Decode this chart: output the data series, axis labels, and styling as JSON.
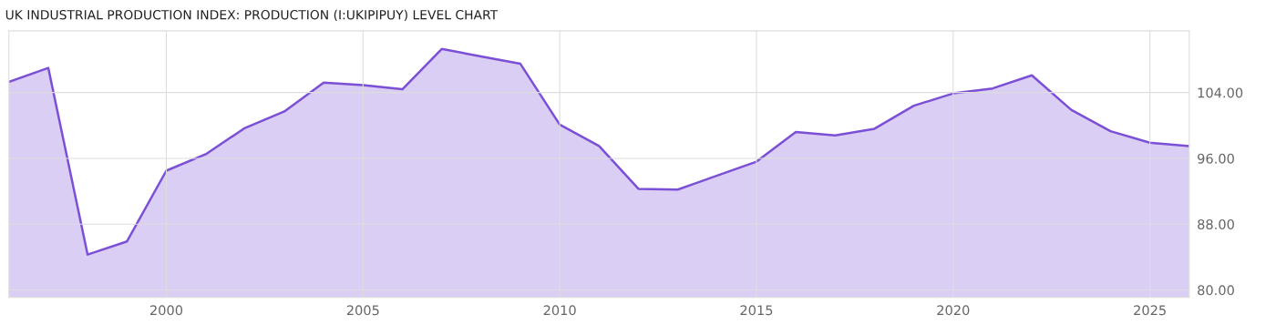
{
  "chart_data": {
    "type": "area",
    "title": "UK INDUSTRIAL PRODUCTION INDEX: PRODUCTION (I:UKIPIPUY) LEVEL CHART",
    "x": [
      1996,
      1997,
      1998,
      1999,
      2000,
      2001,
      2002,
      2003,
      2004,
      2005,
      2006,
      2007,
      2008,
      2009,
      2010,
      2011,
      2012,
      2013,
      2014,
      2015,
      2016,
      2017,
      2018,
      2019,
      2020,
      2021,
      2022,
      2023,
      2024,
      2025,
      2026
    ],
    "series": [
      {
        "color": "#7b4fd6",
        "values": [
          105.3,
          107.0,
          84.3,
          85.9,
          94.5,
          96.5,
          99.7,
          101.7,
          105.2,
          104.9,
          104.4,
          109.3,
          108.4,
          107.5,
          100.1,
          97.5,
          92.3,
          92.2,
          93.9,
          95.6,
          99.2,
          98.8,
          99.6,
          102.4,
          103.9,
          104.5,
          106.1,
          101.9,
          99.3,
          97.9,
          97.5
        ]
      }
    ],
    "xlim": [
      1996,
      2026
    ],
    "ylim": [
      79.1,
      111.5
    ],
    "xticks": [
      2000,
      2005,
      2010,
      2015,
      2020,
      2025
    ],
    "yticks": [
      {
        "value": 80,
        "label": "80.00"
      },
      {
        "value": 88,
        "label": "88.00"
      },
      {
        "value": 96,
        "label": "96.00"
      },
      {
        "value": 104,
        "label": "104.00"
      }
    ],
    "grid": true,
    "legend": false
  }
}
